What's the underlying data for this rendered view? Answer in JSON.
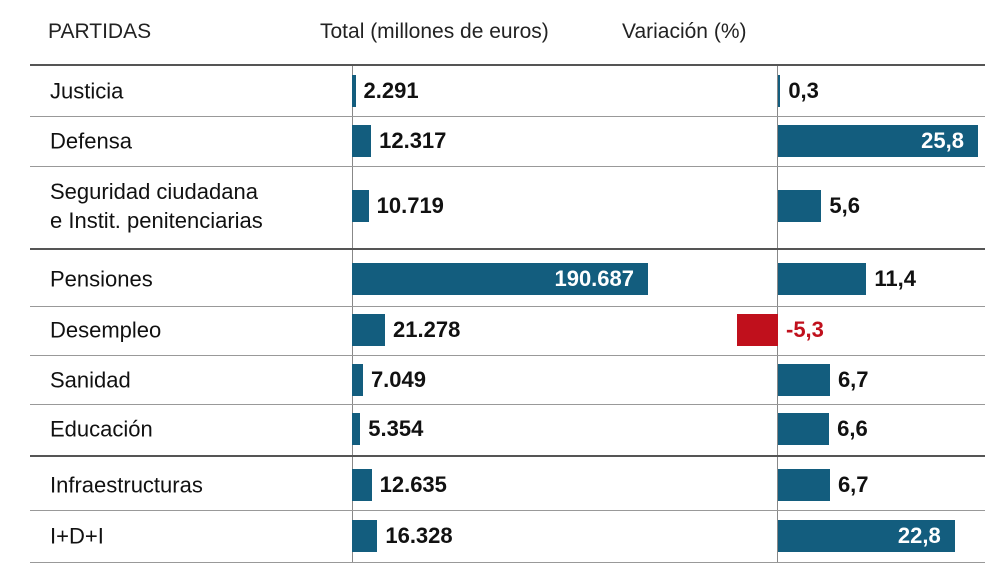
{
  "chart_data": {
    "type": "bar",
    "orientation": "horizontal",
    "headers": [
      "PARTIDAS",
      "Total (millones de euros)",
      "Variación (%)"
    ],
    "categories": [
      "Justicia",
      "Defensa",
      "Seguridad ciudadana\ne Instit. penitenciarias",
      "Pensiones",
      "Desempleo",
      "Sanidad",
      "Educación",
      "Infraestructuras",
      "I+D+I"
    ],
    "series": [
      {
        "name": "Total (millones de euros)",
        "color": "#135d7e",
        "values": [
          2291,
          12317,
          10719,
          190687,
          21278,
          7049,
          5354,
          12635,
          16328
        ],
        "value_labels": [
          "2.291",
          "12.317",
          "10.719",
          "190.687",
          "21.278",
          "7.049",
          "5.354",
          "12.635",
          "16.328"
        ]
      },
      {
        "name": "Variación (%)",
        "color": "#135d7e",
        "negative_color": "#c0101c",
        "values": [
          0.3,
          25.8,
          5.6,
          11.4,
          -5.3,
          6.7,
          6.6,
          6.7,
          22.8
        ],
        "value_labels": [
          "0,3",
          "25,8",
          "5,6",
          "11,4",
          "-5,3",
          "6,7",
          "6,6",
          "6,7",
          "22,8"
        ]
      }
    ]
  }
}
